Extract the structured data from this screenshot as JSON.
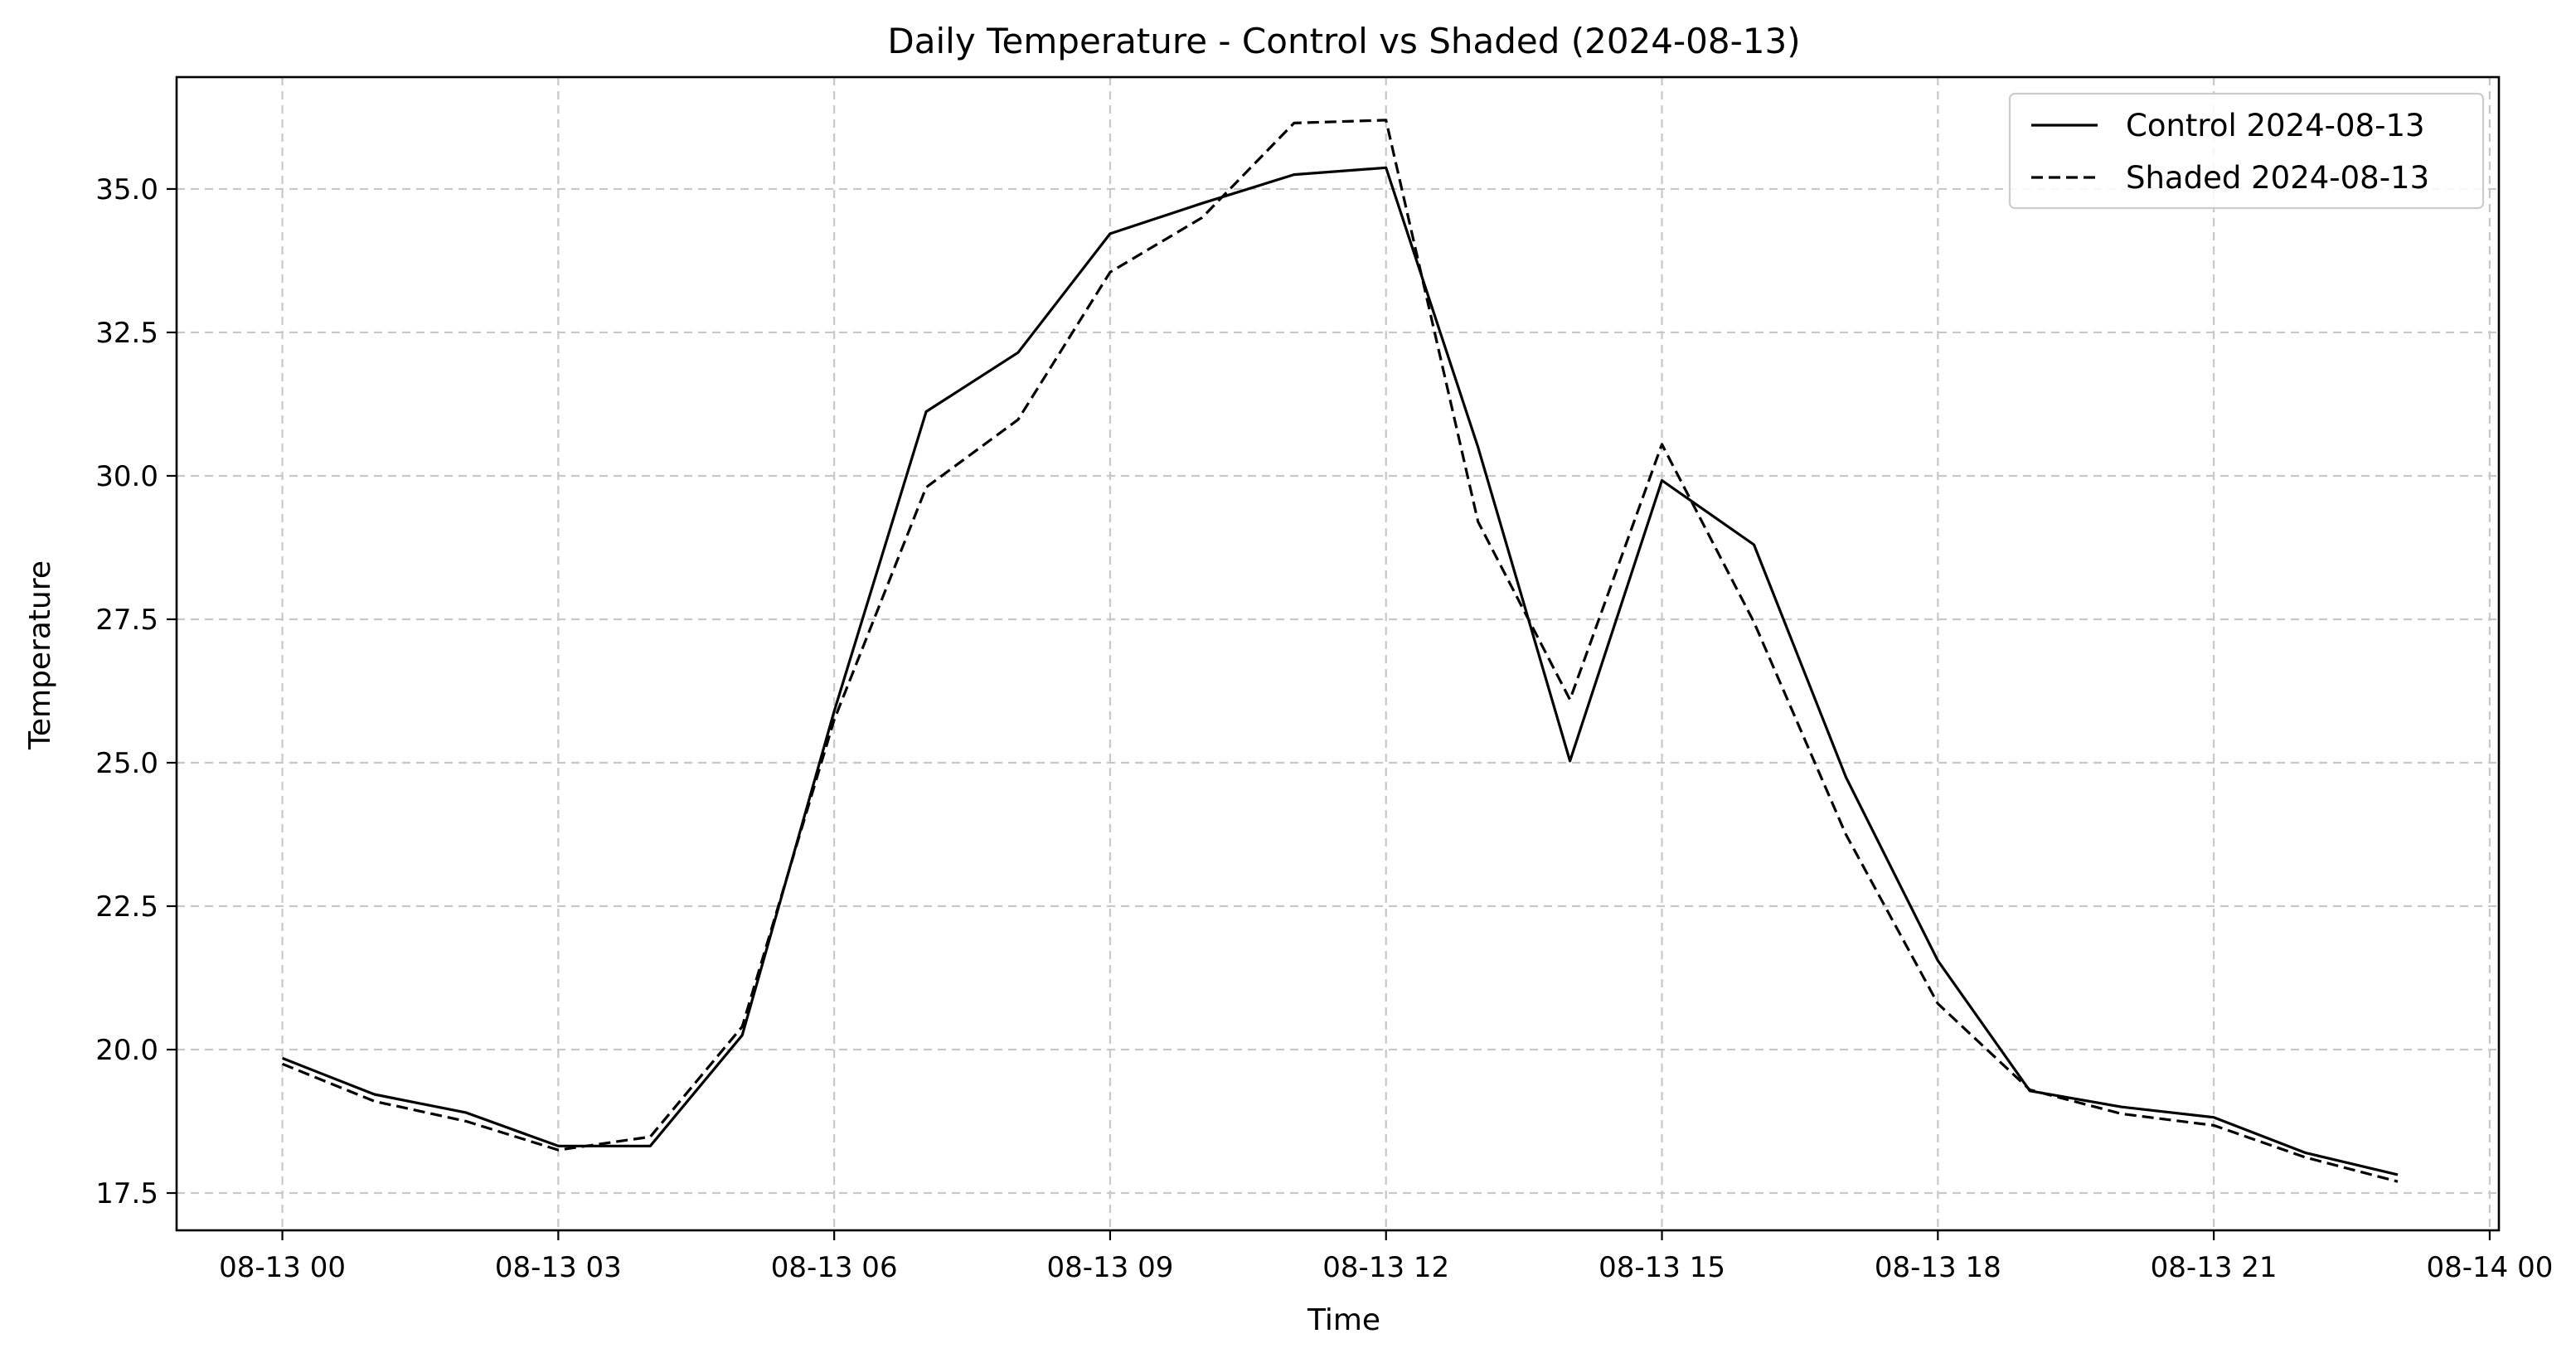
{
  "chart_data": {
    "type": "line",
    "title": "Daily Temperature - Control vs Shaded (2024-08-13)",
    "xlabel": "Time",
    "ylabel": "Temperature",
    "x_unit": "hour",
    "x": [
      0,
      1,
      2,
      3,
      4,
      5,
      6,
      7,
      8,
      9,
      10,
      11,
      12,
      13,
      14,
      15,
      16,
      17,
      18,
      19,
      20,
      21,
      22,
      23
    ],
    "xlim": [
      -1.15,
      24.1
    ],
    "ylim": [
      16.85,
      36.95
    ],
    "x_ticks": [
      0,
      3,
      6,
      9,
      12,
      15,
      18,
      21,
      24
    ],
    "x_tick_labels": [
      "08-13 00",
      "08-13 03",
      "08-13 06",
      "08-13 09",
      "08-13 12",
      "08-13 15",
      "08-13 18",
      "08-13 21",
      "08-14 00"
    ],
    "y_ticks": [
      17.5,
      20.0,
      22.5,
      25.0,
      27.5,
      30.0,
      32.5,
      35.0
    ],
    "y_tick_labels": [
      "17.5",
      "20.0",
      "22.5",
      "25.0",
      "27.5",
      "30.0",
      "32.5",
      "35.0"
    ],
    "grid": true,
    "legend_position": "top-right",
    "series": [
      {
        "name": "Control 2024-08-13",
        "style": "solid",
        "color": "#000000",
        "values": [
          19.85,
          19.22,
          18.9,
          18.32,
          18.32,
          20.25,
          25.9,
          31.12,
          32.15,
          34.22,
          34.75,
          35.25,
          35.37,
          30.5,
          25.03,
          29.92,
          28.8,
          24.75,
          21.55,
          19.28,
          19.0,
          18.82,
          18.2,
          17.82
        ]
      },
      {
        "name": "Shaded 2024-08-13",
        "style": "dashed",
        "color": "#000000",
        "values": [
          19.75,
          19.1,
          18.75,
          18.25,
          18.48,
          20.4,
          25.75,
          29.8,
          30.98,
          33.55,
          34.5,
          36.15,
          36.2,
          29.2,
          26.1,
          30.55,
          27.45,
          23.75,
          20.8,
          19.3,
          18.88,
          18.68,
          18.12,
          17.7
        ]
      }
    ]
  }
}
